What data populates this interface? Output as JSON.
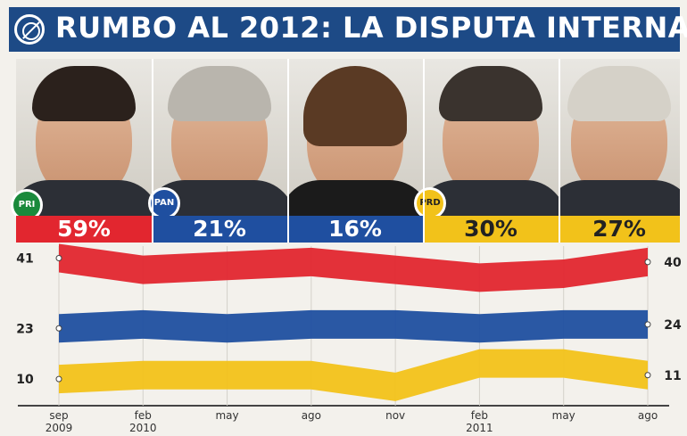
{
  "header": {
    "title": "RUMBO AL 2012: LA DISPUTA INTERNA"
  },
  "candidates": [
    {
      "percent": "59%",
      "color": "#e2262f"
    },
    {
      "percent": "21%",
      "color": "#1f4fa0"
    },
    {
      "percent": "16%",
      "color": "#1f4fa0"
    },
    {
      "percent": "30%",
      "color": "#f2c21a"
    },
    {
      "percent": "27%",
      "color": "#f2c21a"
    }
  ],
  "party_badges": {
    "pri": "PRI",
    "pan": "PAN",
    "prd": "PRD"
  },
  "chart_data": {
    "type": "line",
    "categories": [
      "sep 2009",
      "feb 2010",
      "may",
      "ago",
      "nov",
      "feb 2011",
      "may",
      "ago"
    ],
    "series": [
      {
        "color": "#e2262f",
        "values": [
          41,
          38,
          39,
          40,
          38,
          36,
          37,
          40
        ]
      },
      {
        "color": "#1f4fa0",
        "values": [
          23,
          24,
          23,
          24,
          24,
          23,
          24,
          24
        ]
      },
      {
        "color": "#f2c21a",
        "values": [
          10,
          11,
          11,
          11,
          8,
          14,
          14,
          11
        ]
      }
    ],
    "left_labels": [
      "41",
      "23",
      "10"
    ],
    "right_labels": [
      "40",
      "24",
      "11"
    ],
    "x_ticks": [
      {
        "line1": "sep",
        "line2": "2009"
      },
      {
        "line1": "feb",
        "line2": "2010"
      },
      {
        "line1": "may",
        "line2": ""
      },
      {
        "line1": "ago",
        "line2": ""
      },
      {
        "line1": "nov",
        "line2": ""
      },
      {
        "line1": "feb",
        "line2": "2011"
      },
      {
        "line1": "may",
        "line2": ""
      },
      {
        "line1": "ago",
        "line2": ""
      }
    ],
    "ylim": [
      5,
      45
    ]
  }
}
